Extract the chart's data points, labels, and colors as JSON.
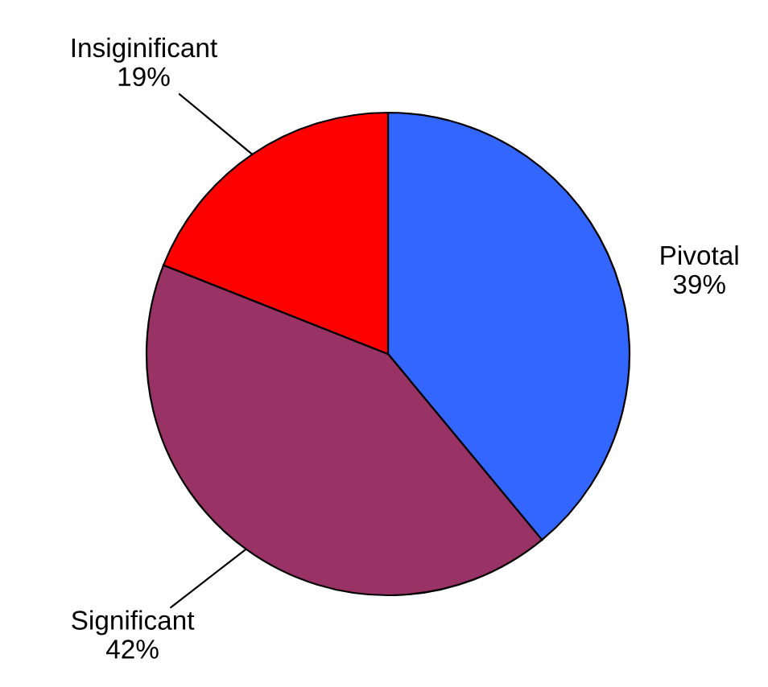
{
  "chart_data": {
    "type": "pie",
    "categories": [
      "Pivotal",
      "Significant",
      "Insiginificant"
    ],
    "values": [
      39,
      42,
      19
    ],
    "colors": [
      "#3366ff",
      "#993366",
      "#ff0000"
    ],
    "value_labels": [
      "39%",
      "42%",
      "19%"
    ],
    "legend": false
  }
}
